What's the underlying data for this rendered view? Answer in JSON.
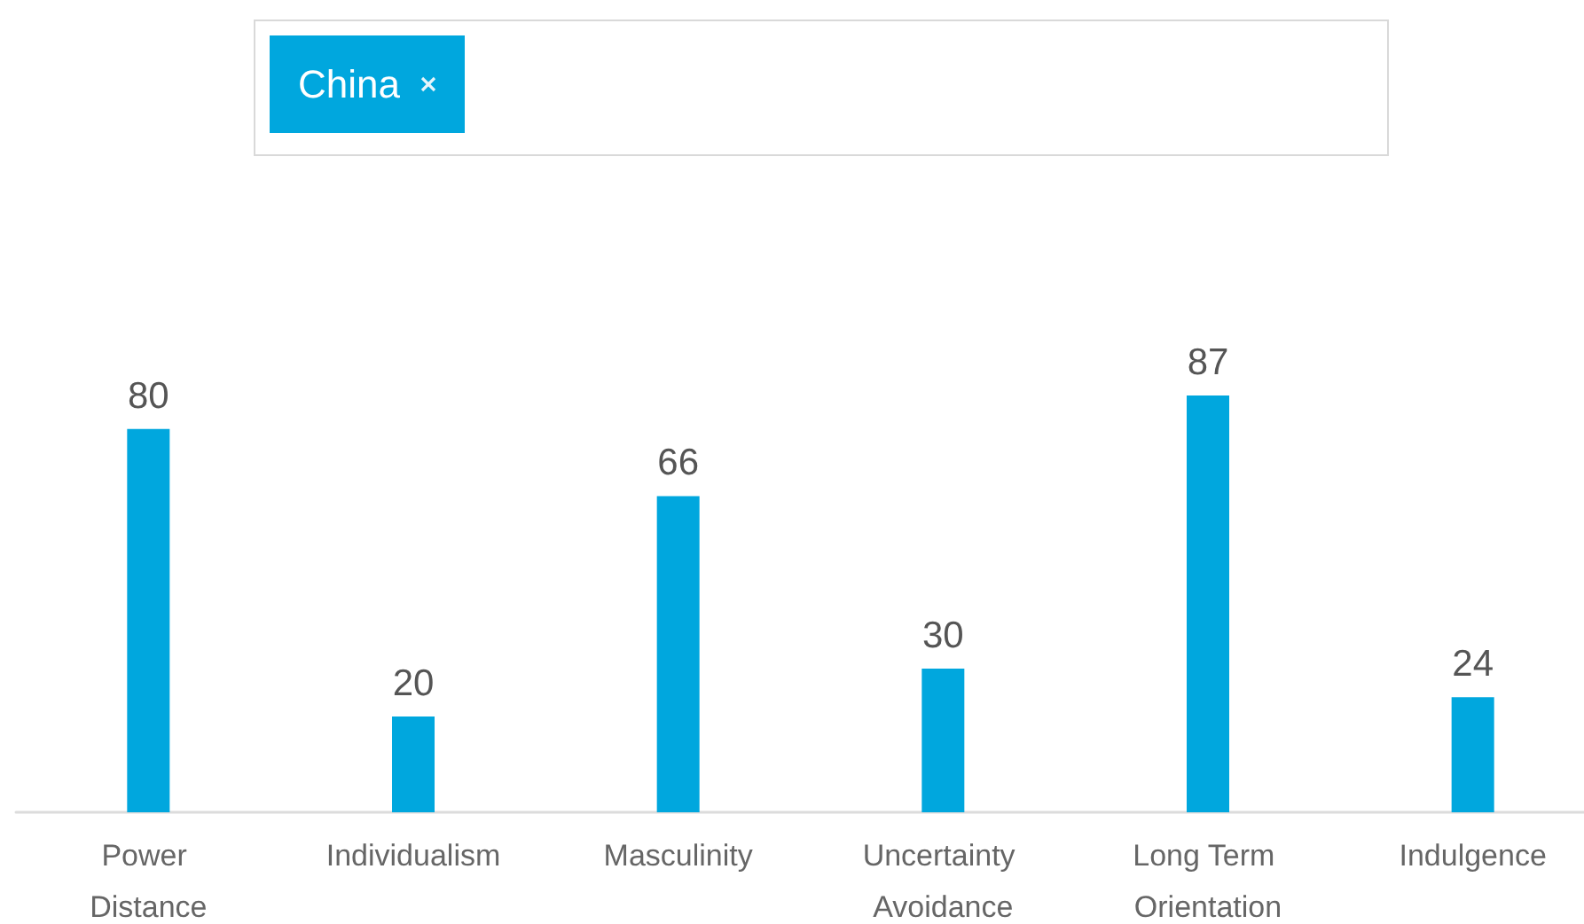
{
  "chart_data": {
    "type": "bar",
    "categories": [
      "Power Distance",
      "Individualism",
      "Masculinity",
      "Uncertainty Avoidance",
      "Long Term Orientation",
      "Indulgence"
    ],
    "series": [
      {
        "name": "China",
        "color": "#00a7de",
        "values": [
          80,
          20,
          66,
          30,
          87,
          24
        ]
      }
    ],
    "data_labels": true,
    "legend": "top"
  }
}
